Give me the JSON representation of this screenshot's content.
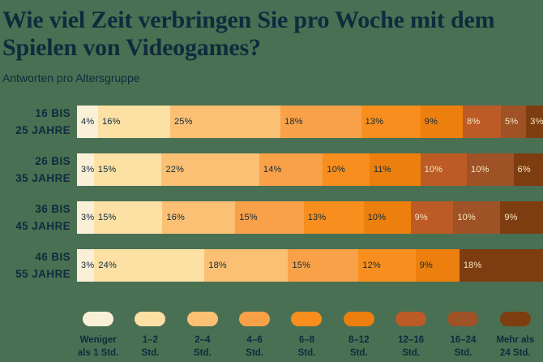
{
  "colors": {
    "background": "#4A7053",
    "text_dark": "#0F2B3D",
    "text_light": "#F6E5C0"
  },
  "header": {
    "title": "Wie viel Zeit verbringen Sie pro Woche mit dem Spielen von Videogames?",
    "subtitle": "Antworten pro Altersgruppe"
  },
  "chart_data": {
    "type": "bar",
    "variant": "horizontal-stacked",
    "title": "Wie viel Zeit verbringen Sie pro Woche mit dem Spielen von Videogames?",
    "subtitle": "Antworten pro Altersgruppe",
    "unit": "%",
    "legend_position": "bottom",
    "grid": false,
    "categories": [
      "Weniger als 1 Std.",
      "1–2 Std.",
      "2–4 Std.",
      "4–6 Std.",
      "6–8 Std.",
      "8–12 Std.",
      "12–16 Std.",
      "16–24 Std.",
      "Mehr als 24 Std."
    ],
    "palette": [
      "#FAF0D8",
      "#FCE0A4",
      "#FBC073",
      "#F9A148",
      "#F78E1E",
      "#EC7F0D",
      "#BC5B25",
      "#9E5226",
      "#7E3D11"
    ],
    "light_label_from_category_index": 6,
    "legend_labels_two_line": [
      [
        "Weniger",
        "als 1 Std."
      ],
      [
        "1–2",
        "Std."
      ],
      [
        "2–4",
        "Std."
      ],
      [
        "4–6",
        "Std."
      ],
      [
        "6–8",
        "Std."
      ],
      [
        "8–12",
        "Std."
      ],
      [
        "12–16",
        "Std."
      ],
      [
        "16–24",
        "Std."
      ],
      [
        "Mehr als",
        "24 Std."
      ]
    ],
    "rows": [
      {
        "group": "16 bis 25 Jahre",
        "label_lines": [
          "16 BIS",
          "25 JAHRE"
        ],
        "segments": [
          {
            "category_index": 0,
            "value": 4,
            "label": "4%"
          },
          {
            "category_index": 1,
            "value": 16,
            "label": "16%"
          },
          {
            "category_index": 2,
            "value": 25,
            "label": "25%"
          },
          {
            "category_index": 3,
            "value": 18,
            "label": "18%"
          },
          {
            "category_index": 4,
            "value": 13,
            "label": "13%"
          },
          {
            "category_index": 5,
            "value": 9,
            "label": "9%"
          },
          {
            "category_index": 6,
            "value": 8,
            "label": "8%"
          },
          {
            "category_index": 7,
            "value": 5,
            "label": "5%"
          },
          {
            "category_index": 8,
            "value": 3,
            "label": "3%"
          }
        ]
      },
      {
        "group": "26 bis 35 Jahre",
        "label_lines": [
          "26 BIS",
          "35 JAHRE"
        ],
        "segments": [
          {
            "category_index": 0,
            "value": 3,
            "label": "3%"
          },
          {
            "category_index": 1,
            "value": 15,
            "label": "15%"
          },
          {
            "category_index": 2,
            "value": 22,
            "label": "22%"
          },
          {
            "category_index": 3,
            "value": 14,
            "label": "14%"
          },
          {
            "category_index": 4,
            "value": 10,
            "label": "10%"
          },
          {
            "category_index": 5,
            "value": 11,
            "label": "11%"
          },
          {
            "category_index": 6,
            "value": 10,
            "label": "10%"
          },
          {
            "category_index": 7,
            "value": 10,
            "label": "10%"
          },
          {
            "category_index": 8,
            "value": 6,
            "label": "6%"
          }
        ]
      },
      {
        "group": "36 bis 45 Jahre",
        "label_lines": [
          "36 BIS",
          "45 JAHRE"
        ],
        "segments": [
          {
            "category_index": 0,
            "value": 3,
            "label": "3%"
          },
          {
            "category_index": 1,
            "value": 15,
            "label": "15%"
          },
          {
            "category_index": 2,
            "value": 16,
            "label": "16%"
          },
          {
            "category_index": 3,
            "value": 15,
            "label": "15%"
          },
          {
            "category_index": 4,
            "value": 13,
            "label": "13%"
          },
          {
            "category_index": 5,
            "value": 10,
            "label": "10%"
          },
          {
            "category_index": 6,
            "value": 9,
            "label": "9%"
          },
          {
            "category_index": 7,
            "value": 10,
            "label": "10%"
          },
          {
            "category_index": 8,
            "value": 9,
            "label": "9%"
          }
        ]
      },
      {
        "group": "46 bis 55 Jahre",
        "label_lines": [
          "46 BIS",
          "55 JAHRE"
        ],
        "segments": [
          {
            "category_index": 0,
            "value": 3,
            "label": "3%"
          },
          {
            "category_index": 1,
            "value": 24,
            "label": "24%"
          },
          {
            "category_index": 2,
            "value": 18,
            "label": "18%"
          },
          {
            "category_index": 3,
            "value": 15,
            "label": "15%"
          },
          {
            "category_index": 4,
            "value": 12,
            "label": "12%"
          },
          {
            "category_index": 5,
            "value": 9,
            "label": "9%"
          },
          {
            "category_index": 8,
            "value": 18,
            "label": "18%"
          }
        ]
      }
    ]
  }
}
